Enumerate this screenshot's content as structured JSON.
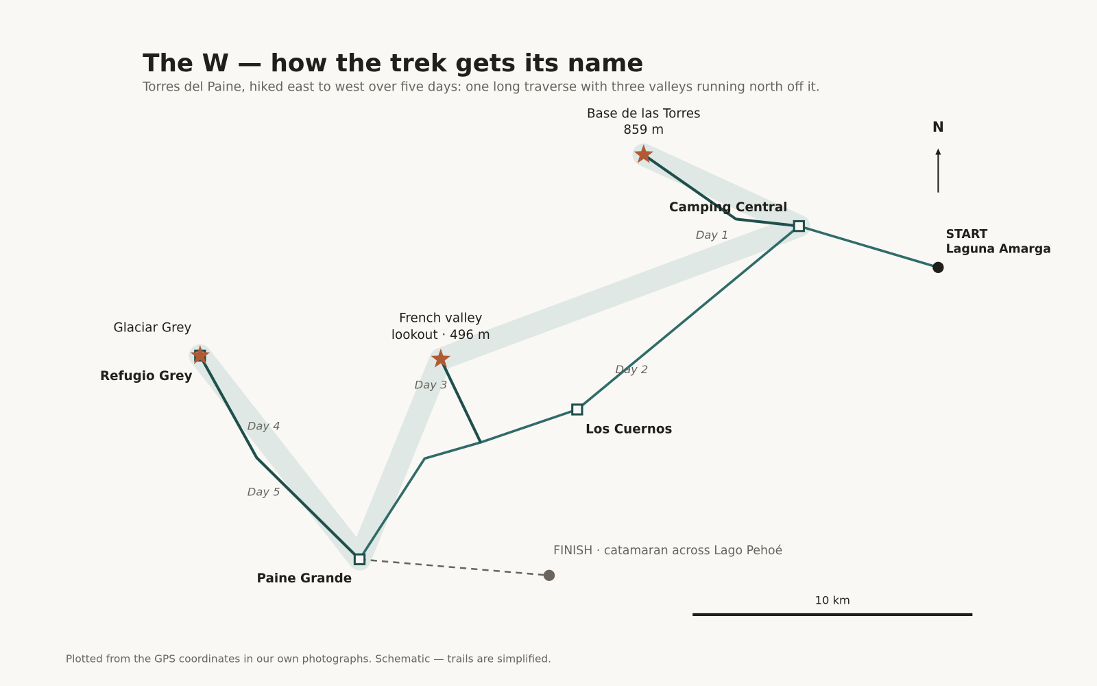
{
  "header": {
    "title": "The W — how the trek gets its name",
    "subtitle": "Torres del Paine, hiked east to west over five days: one long traverse with three valleys running north off it."
  },
  "places": {
    "start": {
      "label": "START",
      "name": "Laguna Amarga"
    },
    "camping_central": {
      "name": "Camping Central"
    },
    "base_torres": {
      "name": "Base de las Torres",
      "elevation": "859 m"
    },
    "los_cuernos": {
      "name": "Los Cuernos"
    },
    "french_valley": {
      "name": "French valley",
      "detail": "lookout · 496 m"
    },
    "paine_grande": {
      "name": "Paine Grande"
    },
    "refugio_grey": {
      "name": "Refugio Grey"
    },
    "glaciar_grey": {
      "name": "Glaciar Grey"
    },
    "finish": {
      "label": "FINISH · catamaran across Lago Pehoé"
    }
  },
  "days": [
    "Day 1",
    "Day 2",
    "Day 3",
    "Day 4",
    "Day 5"
  ],
  "compass": "N",
  "scale": "10 km",
  "footer": "Plotted from the GPS coordinates in our own photographs. Schematic — trails are simplified."
}
